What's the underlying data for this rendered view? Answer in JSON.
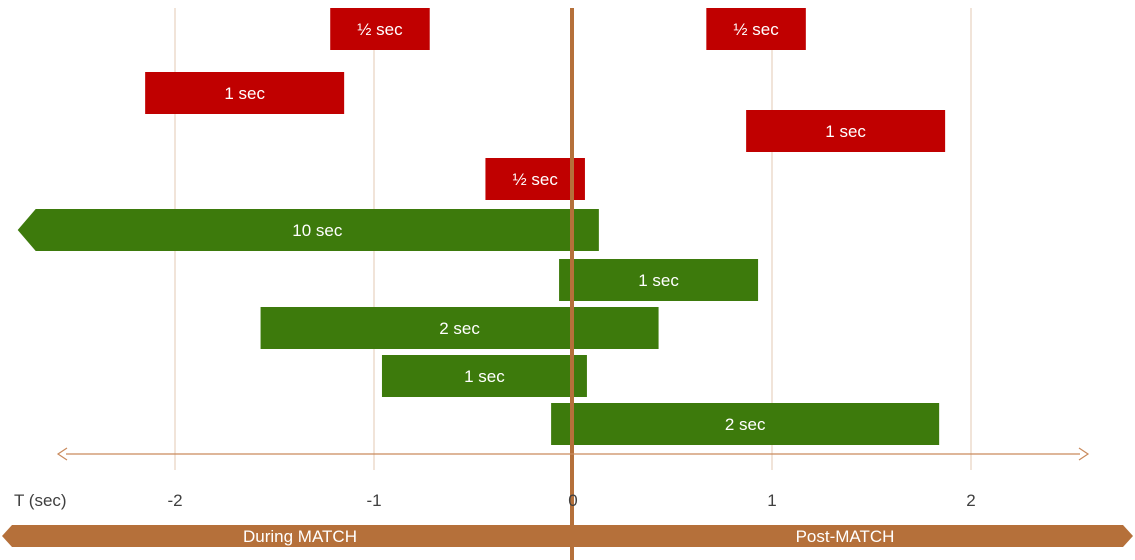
{
  "axis": {
    "label": "T (sec)",
    "ticks": [
      {
        "value": -2,
        "label": "-2"
      },
      {
        "value": -1,
        "label": "-1"
      },
      {
        "value": 0,
        "label": "0"
      },
      {
        "value": 1,
        "label": "1"
      },
      {
        "value": 2,
        "label": "2"
      }
    ]
  },
  "phases": {
    "during": "During MATCH",
    "post": "Post-MATCH"
  },
  "colors": {
    "red_bar": "#c00000",
    "green_bar": "#3d7a0c",
    "zero_line": "#b5703a",
    "phase_band": "#b5703a",
    "gridline": "#e3c9b3",
    "axis_arrow": "#c98a5c",
    "text_dark": "#404040",
    "bar_text": "#ffffff"
  },
  "bars": [
    {
      "label": "½ sec",
      "start": 0.67,
      "end": 1.17,
      "color": "red"
    },
    {
      "label": "½ sec",
      "start": -1.22,
      "end": -0.72,
      "color": "red"
    },
    {
      "label": "1 sec",
      "start": -2.15,
      "end": -1.15,
      "color": "red"
    },
    {
      "label": "1 sec",
      "start": 0.87,
      "end": 1.87,
      "color": "red"
    },
    {
      "label": "½ sec",
      "start": -0.44,
      "end": 0.06,
      "color": "red"
    },
    {
      "label": "10 sec",
      "start": -2.7,
      "end": 0.13,
      "color": "green",
      "left_arrow": true
    },
    {
      "label": "1 sec",
      "start": -0.07,
      "end": 0.93,
      "color": "green"
    },
    {
      "label": "2 sec",
      "start": -1.57,
      "end": 0.43,
      "color": "green"
    },
    {
      "label": "1 sec",
      "start": -0.96,
      "end": 0.07,
      "color": "green"
    },
    {
      "label": "2 sec",
      "start": -0.11,
      "end": 1.84,
      "color": "green"
    }
  ]
}
